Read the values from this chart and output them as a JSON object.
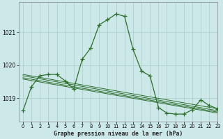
{
  "title": "Graphe pression niveau de la mer (hPa)",
  "bg_color": "#cce8e8",
  "grid_color": "#aacccc",
  "line_color": "#2d6e2d",
  "xlim": [
    -0.5,
    23
  ],
  "ylim": [
    1018.3,
    1021.9
  ],
  "yticks": [
    1019,
    1020,
    1021
  ],
  "xticks": [
    0,
    1,
    2,
    3,
    4,
    5,
    6,
    7,
    8,
    9,
    10,
    11,
    12,
    13,
    14,
    15,
    16,
    17,
    18,
    19,
    20,
    21,
    22,
    23
  ],
  "linear_lines": [
    {
      "x0": 0,
      "y0": 1019.72,
      "x1": 23,
      "y1": 1018.68
    },
    {
      "x0": 0,
      "y0": 1019.68,
      "x1": 23,
      "y1": 1018.62
    },
    {
      "x0": 0,
      "y0": 1019.62,
      "x1": 23,
      "y1": 1018.58
    },
    {
      "x0": 0,
      "y0": 1019.58,
      "x1": 23,
      "y1": 1018.55
    }
  ],
  "main_x": [
    0,
    1,
    2,
    3,
    4,
    5,
    6,
    7,
    8,
    9,
    10,
    11,
    12,
    13,
    14,
    15,
    16,
    17,
    18,
    19,
    20,
    21,
    22,
    23
  ],
  "main_y": [
    1018.62,
    1019.35,
    1019.68,
    1019.72,
    1019.72,
    1019.52,
    1019.28,
    1020.18,
    1020.52,
    1021.22,
    1021.38,
    1021.55,
    1021.48,
    1020.48,
    1019.82,
    1019.68,
    1018.72,
    1018.55,
    1018.52,
    1018.52,
    1018.65,
    1018.95,
    1018.78,
    1018.68
  ]
}
